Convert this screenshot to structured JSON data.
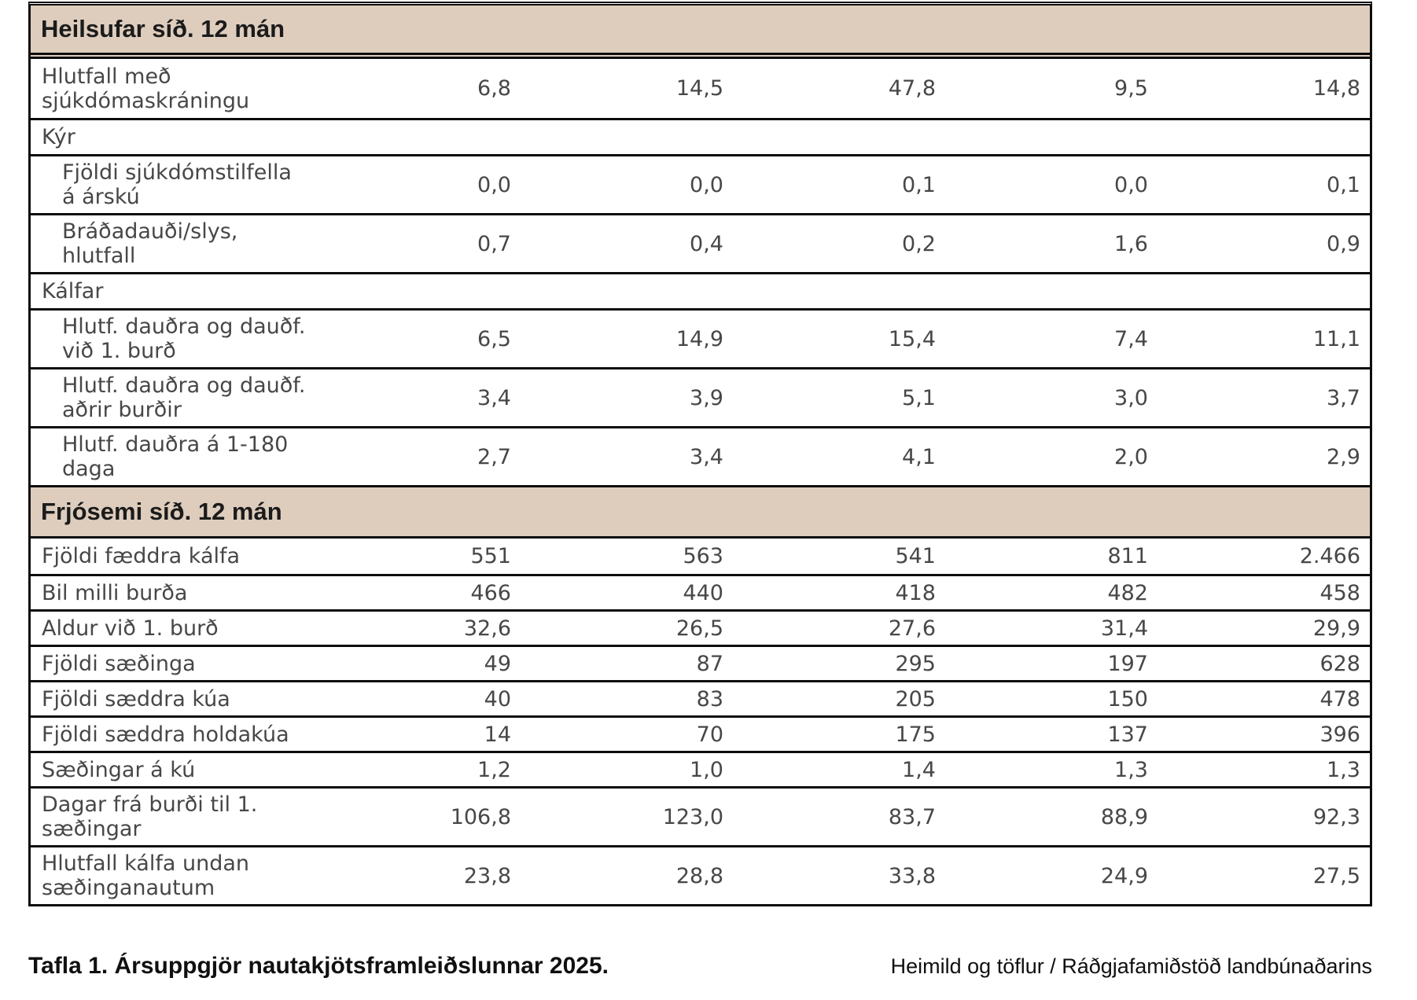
{
  "table": {
    "sections": [
      {
        "header": "Heilsufar síð. 12 mán",
        "rows": [
          {
            "label_lines": [
              "Hlutfall með",
              "sjúkdómaskráningu"
            ],
            "indent": false,
            "values": [
              "6,8",
              "14,5",
              "47,8",
              "9,5",
              "14,8"
            ]
          },
          {
            "label": "Kýr",
            "indent": false,
            "values": []
          },
          {
            "label_lines": [
              "Fjöldi sjúkdómstilfella",
              "á árskú"
            ],
            "indent": true,
            "values": [
              "0,0",
              "0,0",
              "0,1",
              "0,0",
              "0,1"
            ]
          },
          {
            "label_lines": [
              "Bráðadauði/slys,",
              "hlutfall"
            ],
            "indent": true,
            "values": [
              "0,7",
              "0,4",
              "0,2",
              "1,6",
              "0,9"
            ]
          },
          {
            "label": "Kálfar",
            "indent": false,
            "values": []
          },
          {
            "label_lines": [
              "Hlutf. dauðra og dauðf.",
              "við 1. burð"
            ],
            "indent": true,
            "values": [
              "6,5",
              "14,9",
              "15,4",
              "7,4",
              "11,1"
            ]
          },
          {
            "label_lines": [
              "Hlutf. dauðra og dauðf.",
              "aðrir burðir"
            ],
            "indent": true,
            "values": [
              "3,4",
              "3,9",
              "5,1",
              "3,0",
              "3,7"
            ]
          },
          {
            "label_lines": [
              "Hlutf. dauðra á 1-180",
              "daga"
            ],
            "indent": true,
            "values": [
              "2,7",
              "3,4",
              "4,1",
              "2,0",
              "2,9"
            ]
          }
        ]
      },
      {
        "header": "Frjósemi síð. 12 mán",
        "rows": [
          {
            "label": "Fjöldi fæddra kálfa",
            "indent": false,
            "values": [
              "551",
              "563",
              "541",
              "811",
              "2.466"
            ]
          },
          {
            "label": "Bil milli burða",
            "indent": false,
            "values": [
              "466",
              "440",
              "418",
              "482",
              "458"
            ]
          },
          {
            "label": "Aldur við 1. burð",
            "indent": false,
            "values": [
              "32,6",
              "26,5",
              "27,6",
              "31,4",
              "29,9"
            ]
          },
          {
            "label": "Fjöldi sæðinga",
            "indent": false,
            "values": [
              "49",
              "87",
              "295",
              "197",
              "628"
            ]
          },
          {
            "label": "Fjöldi sæddra kúa",
            "indent": false,
            "values": [
              "40",
              "83",
              "205",
              "150",
              "478"
            ]
          },
          {
            "label": "Fjöldi sæddra holdakúa",
            "indent": false,
            "values": [
              "14",
              "70",
              "175",
              "137",
              "396"
            ]
          },
          {
            "label": "Sæðingar á kú",
            "indent": false,
            "values": [
              "1,2",
              "1,0",
              "1,4",
              "1,3",
              "1,3"
            ]
          },
          {
            "label_lines": [
              "Dagar frá burði til 1.",
              "sæðingar"
            ],
            "indent": false,
            "values": [
              "106,8",
              "123,0",
              "83,7",
              "88,9",
              "92,3"
            ]
          },
          {
            "label_lines": [
              "Hlutfall kálfa undan",
              "sæðinganautum"
            ],
            "indent": false,
            "values": [
              "23,8",
              "28,8",
              "33,8",
              "24,9",
              "27,5"
            ]
          }
        ]
      }
    ]
  },
  "caption": {
    "left": "Tafla 1. Ársuppgjör nautakjötsframleiðslunnar 2025.",
    "right": "Heimild og töflur / Ráðgjafamiðstöð landbúnaðarins"
  },
  "colors": {
    "band_background": "#decdbd",
    "body_text": "#474747",
    "header_text": "#1b1b1b",
    "border": "#0d0d0d"
  }
}
